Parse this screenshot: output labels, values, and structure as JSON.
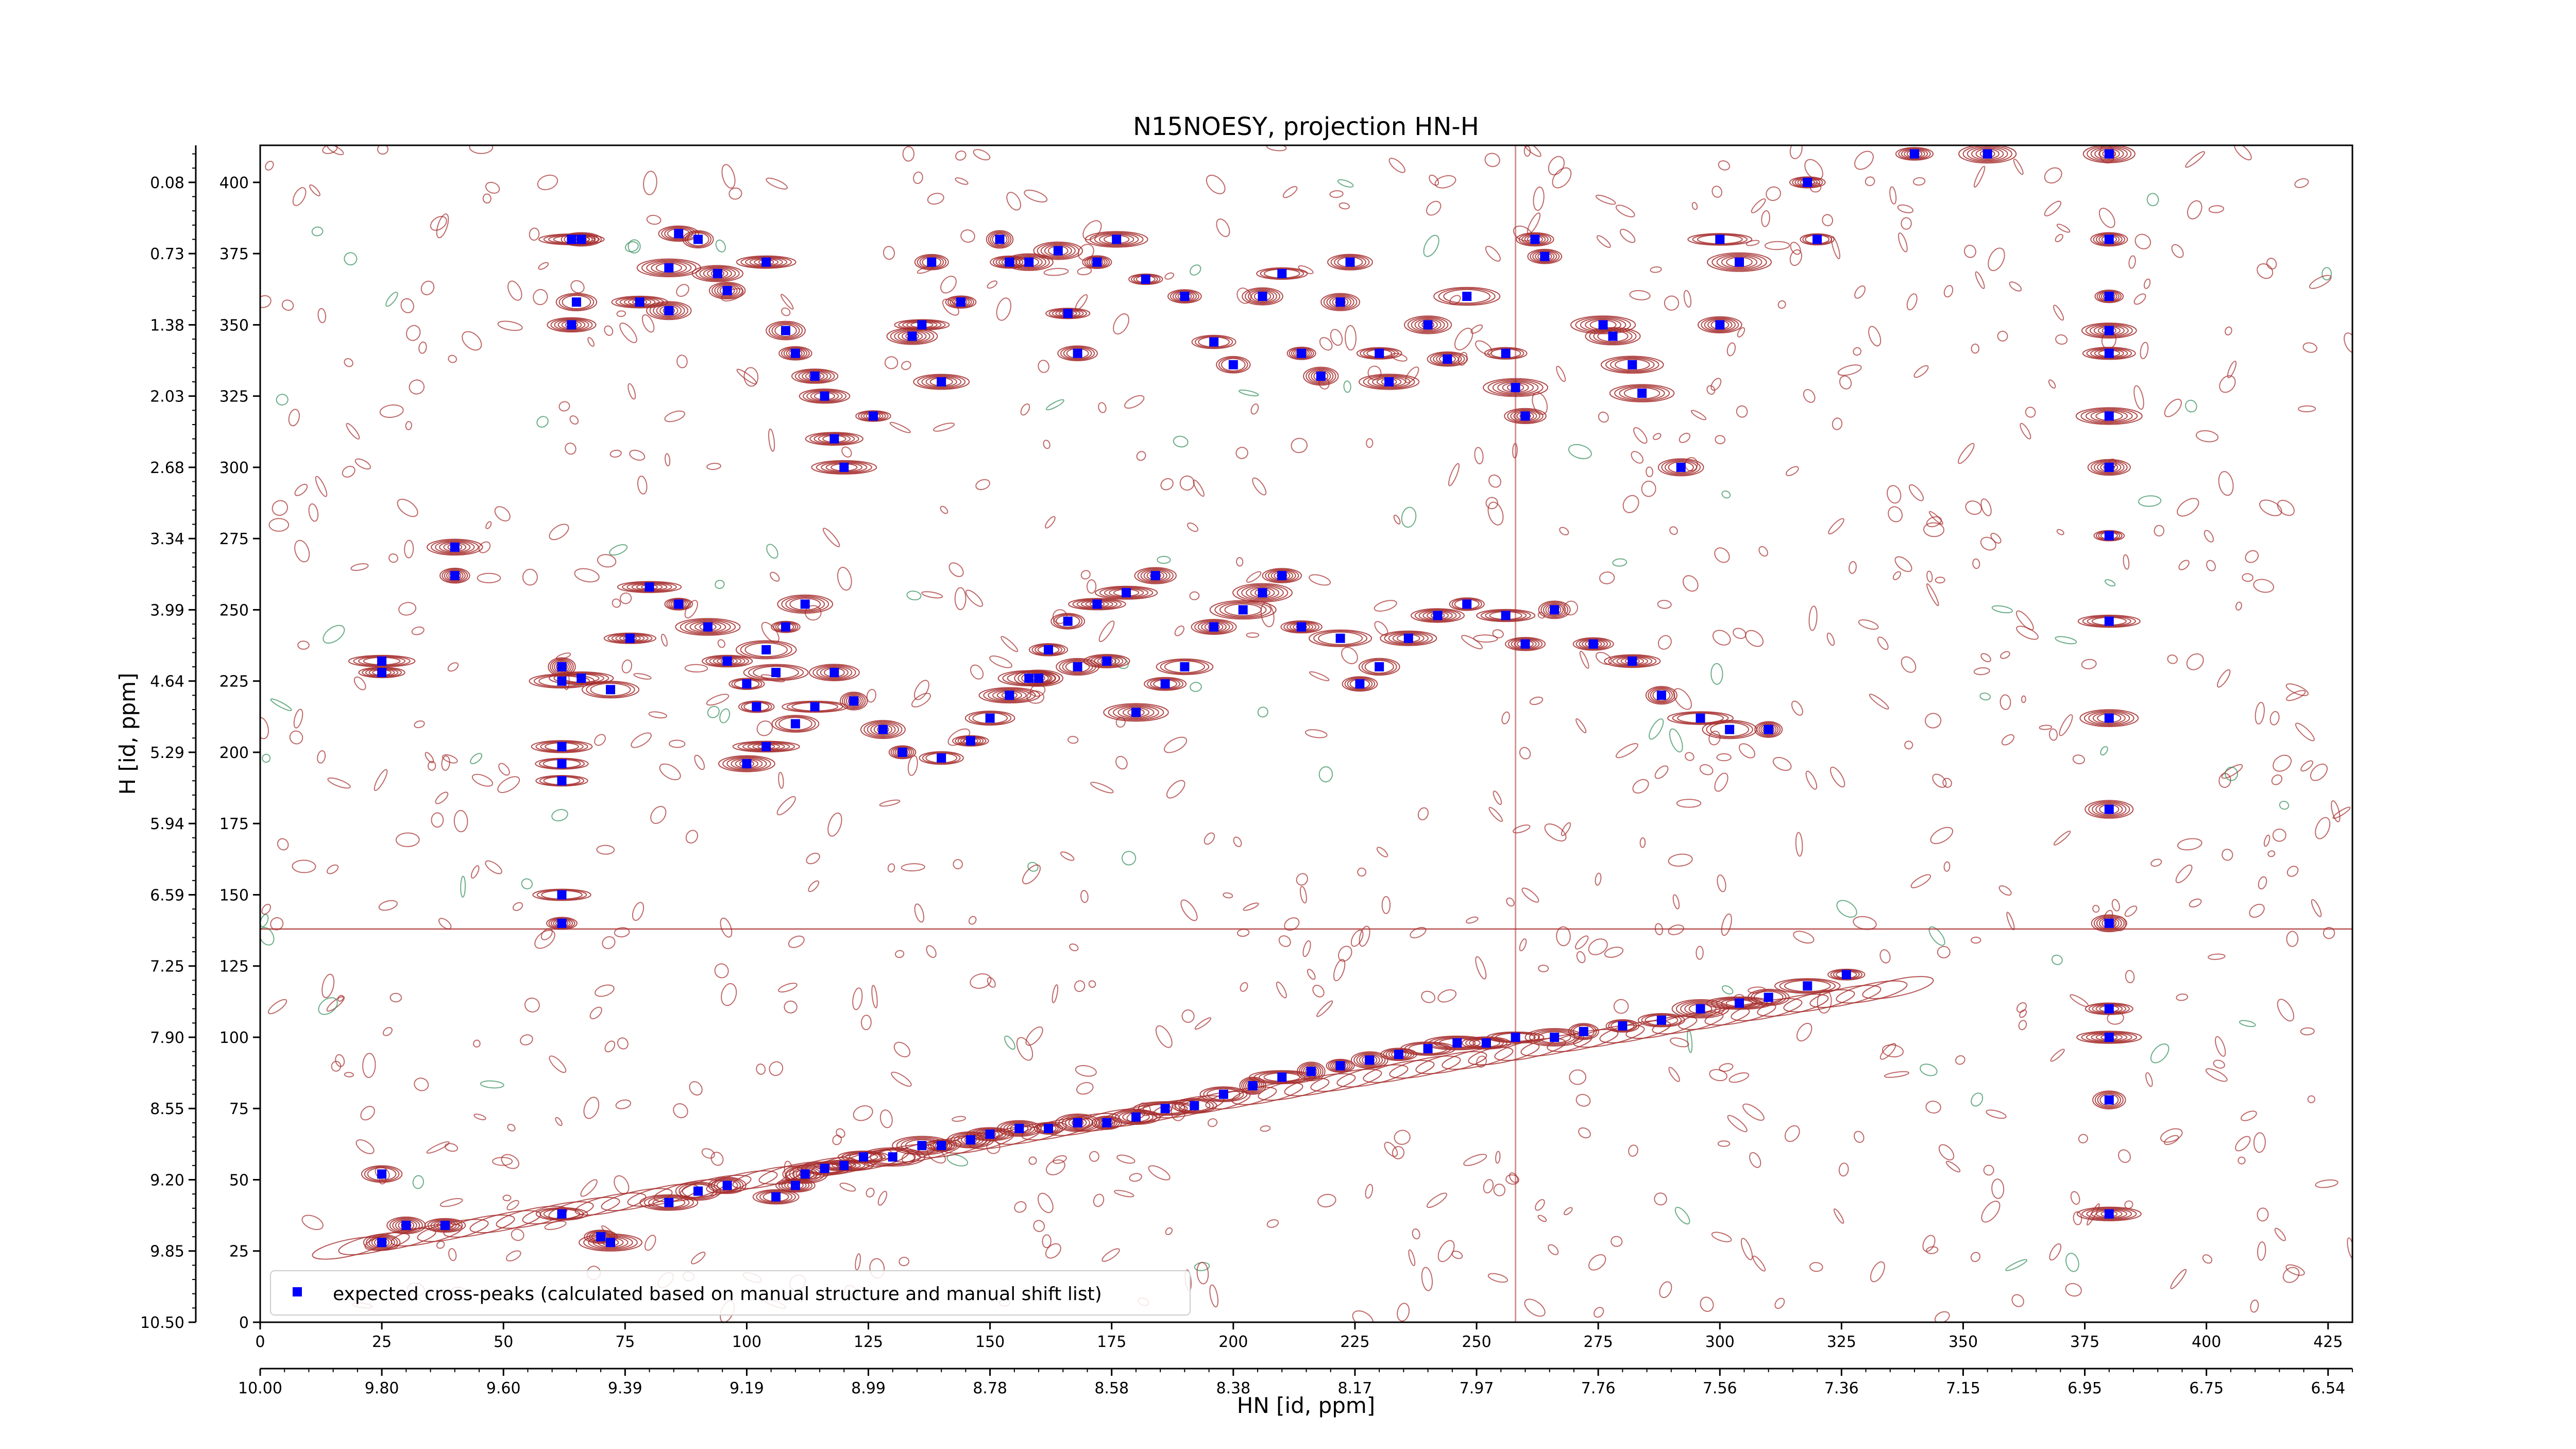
{
  "chart_data": {
    "type": "scatter",
    "title": "N15NOESY, projection HN-H",
    "xlabel": "HN [id, ppm]",
    "ylabel": "H [id, ppm]",
    "xlim": [
      0,
      430
    ],
    "ylim": [
      0,
      413
    ],
    "x_ticks": [
      0,
      25,
      50,
      75,
      100,
      125,
      150,
      175,
      200,
      225,
      250,
      275,
      300,
      325,
      350,
      375,
      400,
      425
    ],
    "y_ticks": [
      0,
      25,
      50,
      75,
      100,
      125,
      150,
      175,
      200,
      225,
      250,
      275,
      300,
      325,
      350,
      375,
      400
    ],
    "x_ppm_labels": [
      "10.00",
      "9.80",
      "9.60",
      "9.39",
      "9.19",
      "8.99",
      "8.78",
      "8.58",
      "8.38",
      "8.17",
      "7.97",
      "7.76",
      "7.56",
      "7.36",
      "7.15",
      "6.95",
      "6.75",
      "6.54"
    ],
    "y_ppm_labels": [
      "10.50",
      "9.85",
      "9.20",
      "8.55",
      "7.90",
      "7.25",
      "6.59",
      "5.94",
      "5.29",
      "4.64",
      "3.99",
      "3.34",
      "2.68",
      "2.03",
      "1.38",
      "0.73",
      "0.08"
    ],
    "legend": {
      "label": "expected cross-peaks (calculated based on manual structure and manual shift list)",
      "location": "lower-left"
    },
    "grid": false,
    "colors": {
      "positive_contour": "#a52a2a",
      "negative_contour": "#2e8b57",
      "marker": "#0000ff"
    },
    "series": [
      {
        "name": "expected cross-peaks (calculated based on manual structure and manual shift list)",
        "marker": "square",
        "points": [
          [
            25,
            28
          ],
          [
            25,
            52
          ],
          [
            30,
            34
          ],
          [
            38,
            34
          ],
          [
            62,
            38
          ],
          [
            70,
            30
          ],
          [
            72,
            28
          ],
          [
            84,
            42
          ],
          [
            90,
            46
          ],
          [
            96,
            48
          ],
          [
            106,
            44
          ],
          [
            110,
            48
          ],
          [
            112,
            52
          ],
          [
            116,
            54
          ],
          [
            120,
            55
          ],
          [
            124,
            58
          ],
          [
            130,
            58
          ],
          [
            136,
            62
          ],
          [
            140,
            62
          ],
          [
            146,
            64
          ],
          [
            150,
            66
          ],
          [
            156,
            68
          ],
          [
            162,
            68
          ],
          [
            168,
            70
          ],
          [
            174,
            70
          ],
          [
            180,
            72
          ],
          [
            186,
            75
          ],
          [
            192,
            76
          ],
          [
            198,
            80
          ],
          [
            204,
            83
          ],
          [
            210,
            86
          ],
          [
            216,
            88
          ],
          [
            222,
            90
          ],
          [
            228,
            92
          ],
          [
            234,
            94
          ],
          [
            240,
            96
          ],
          [
            246,
            98
          ],
          [
            252,
            98
          ],
          [
            258,
            100
          ],
          [
            266,
            100
          ],
          [
            272,
            102
          ],
          [
            280,
            104
          ],
          [
            288,
            106
          ],
          [
            296,
            110
          ],
          [
            304,
            112
          ],
          [
            310,
            114
          ],
          [
            318,
            118
          ],
          [
            326,
            122
          ],
          [
            25,
            228
          ],
          [
            25,
            232
          ],
          [
            40,
            272
          ],
          [
            40,
            262
          ],
          [
            62,
            150
          ],
          [
            62,
            140
          ],
          [
            62,
            190
          ],
          [
            62,
            196
          ],
          [
            62,
            202
          ],
          [
            62,
            225
          ],
          [
            64,
            350
          ],
          [
            65,
            358
          ],
          [
            64,
            380
          ],
          [
            66,
            380
          ],
          [
            78,
            358
          ],
          [
            84,
            355
          ],
          [
            84,
            370
          ],
          [
            86,
            382
          ],
          [
            90,
            380
          ],
          [
            94,
            368
          ],
          [
            96,
            362
          ],
          [
            104,
            372
          ],
          [
            108,
            348
          ],
          [
            110,
            340
          ],
          [
            114,
            332
          ],
          [
            116,
            325
          ],
          [
            118,
            310
          ],
          [
            120,
            300
          ],
          [
            126,
            318
          ],
          [
            134,
            346
          ],
          [
            136,
            350
          ],
          [
            138,
            372
          ],
          [
            140,
            330
          ],
          [
            144,
            358
          ],
          [
            152,
            380
          ],
          [
            154,
            372
          ],
          [
            158,
            372
          ],
          [
            164,
            376
          ],
          [
            166,
            354
          ],
          [
            168,
            340
          ],
          [
            172,
            372
          ],
          [
            176,
            380
          ],
          [
            182,
            366
          ],
          [
            190,
            360
          ],
          [
            196,
            344
          ],
          [
            200,
            336
          ],
          [
            206,
            360
          ],
          [
            210,
            368
          ],
          [
            214,
            340
          ],
          [
            218,
            332
          ],
          [
            222,
            358
          ],
          [
            224,
            372
          ],
          [
            230,
            340
          ],
          [
            232,
            330
          ],
          [
            240,
            350
          ],
          [
            244,
            338
          ],
          [
            248,
            360
          ],
          [
            256,
            340
          ],
          [
            258,
            328
          ],
          [
            260,
            318
          ],
          [
            262,
            380
          ],
          [
            264,
            374
          ],
          [
            276,
            350
          ],
          [
            278,
            346
          ],
          [
            282,
            336
          ],
          [
            284,
            326
          ],
          [
            292,
            300
          ],
          [
            300,
            350
          ],
          [
            300,
            380
          ],
          [
            304,
            372
          ],
          [
            318,
            400
          ],
          [
            320,
            380
          ],
          [
            340,
            410
          ],
          [
            355,
            410
          ],
          [
            380,
            410
          ],
          [
            380,
            380
          ],
          [
            380,
            360
          ],
          [
            380,
            348
          ],
          [
            380,
            340
          ],
          [
            380,
            318
          ],
          [
            380,
            300
          ],
          [
            380,
            276
          ],
          [
            380,
            246
          ],
          [
            380,
            212
          ],
          [
            380,
            180
          ],
          [
            380,
            140
          ],
          [
            380,
            110
          ],
          [
            380,
            100
          ],
          [
            380,
            78
          ],
          [
            380,
            38
          ],
          [
            160,
            226
          ],
          [
            168,
            230
          ],
          [
            174,
            232
          ],
          [
            180,
            214
          ],
          [
            186,
            224
          ],
          [
            190,
            230
          ],
          [
            196,
            244
          ],
          [
            202,
            250
          ],
          [
            206,
            256
          ],
          [
            210,
            262
          ],
          [
            214,
            244
          ],
          [
            222,
            240
          ],
          [
            226,
            224
          ],
          [
            230,
            230
          ],
          [
            236,
            240
          ],
          [
            242,
            248
          ],
          [
            248,
            252
          ],
          [
            256,
            248
          ],
          [
            260,
            238
          ],
          [
            266,
            250
          ],
          [
            274,
            238
          ],
          [
            282,
            232
          ],
          [
            288,
            220
          ],
          [
            296,
            212
          ],
          [
            302,
            208
          ],
          [
            310,
            208
          ],
          [
            100,
            196
          ],
          [
            104,
            202
          ],
          [
            110,
            210
          ],
          [
            114,
            216
          ],
          [
            118,
            228
          ],
          [
            122,
            218
          ],
          [
            128,
            208
          ],
          [
            132,
            200
          ],
          [
            140,
            198
          ],
          [
            146,
            204
          ],
          [
            150,
            212
          ],
          [
            154,
            220
          ],
          [
            158,
            226
          ],
          [
            162,
            236
          ],
          [
            166,
            246
          ],
          [
            172,
            252
          ],
          [
            178,
            256
          ],
          [
            184,
            262
          ],
          [
            62,
            230
          ],
          [
            66,
            226
          ],
          [
            72,
            222
          ],
          [
            76,
            240
          ],
          [
            80,
            258
          ],
          [
            86,
            252
          ],
          [
            92,
            244
          ],
          [
            96,
            232
          ],
          [
            100,
            224
          ],
          [
            102,
            216
          ],
          [
            106,
            228
          ],
          [
            104,
            236
          ],
          [
            108,
            244
          ],
          [
            112,
            252
          ]
        ]
      }
    ]
  }
}
